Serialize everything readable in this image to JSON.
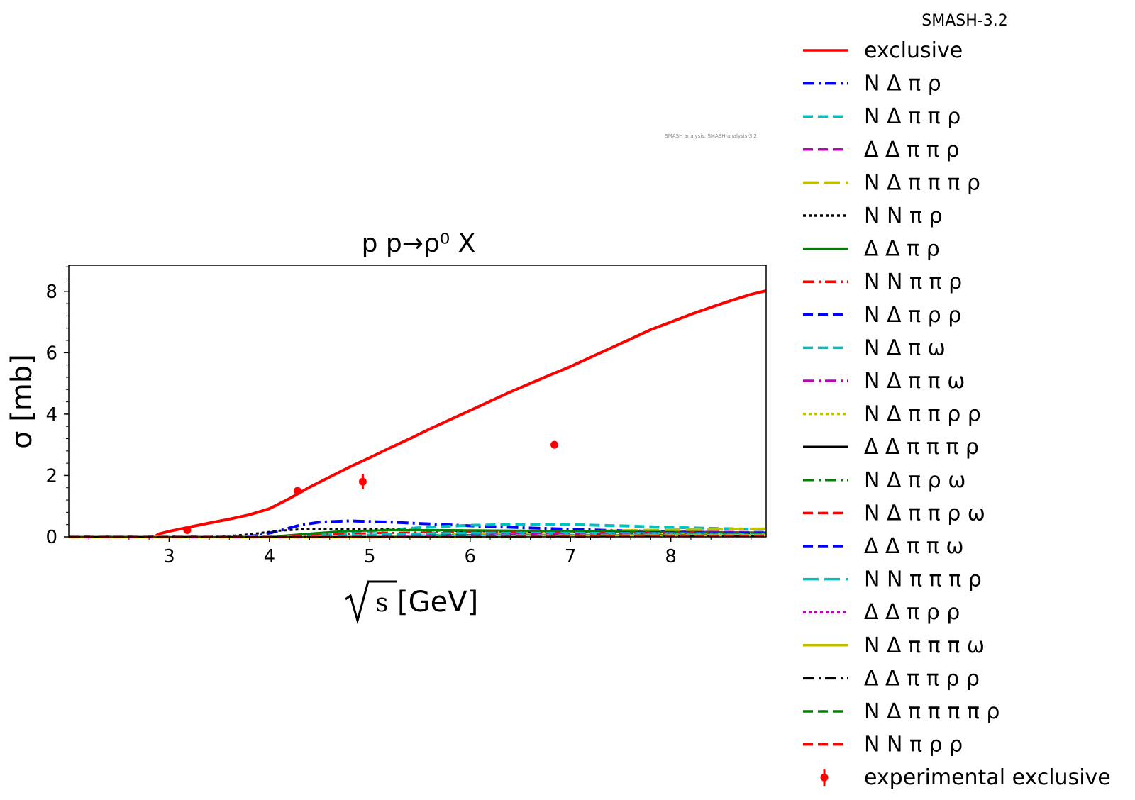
{
  "chart_data": {
    "type": "line",
    "title": "p p→ρ⁰ X",
    "xlabel_radicand": "s",
    "xlabel_unit": "[GeV]",
    "ylabel": "σ [mb]",
    "xlim": [
      2.0,
      8.95
    ],
    "ylim": [
      0,
      8.85
    ],
    "x_ticks": [
      3,
      4,
      5,
      6,
      7,
      8
    ],
    "y_ticks": [
      0,
      2,
      4,
      6,
      8
    ],
    "grid": false,
    "legend_title": "SMASH-3.2",
    "legend_placement": "outside-right",
    "watermark": "SMASH analysis: SMASH-analysis-3.2",
    "series": [
      {
        "name": "exclusive",
        "color": "#ff0000",
        "dash": "solid",
        "width": 4,
        "points": [
          [
            2.0,
            0
          ],
          [
            2.85,
            0
          ],
          [
            2.9,
            0.1
          ],
          [
            3.0,
            0.18
          ],
          [
            3.2,
            0.32
          ],
          [
            3.4,
            0.45
          ],
          [
            3.6,
            0.58
          ],
          [
            3.8,
            0.72
          ],
          [
            4.0,
            0.92
          ],
          [
            4.2,
            1.25
          ],
          [
            4.4,
            1.62
          ],
          [
            4.6,
            1.95
          ],
          [
            4.8,
            2.28
          ],
          [
            5.0,
            2.58
          ],
          [
            5.2,
            2.9
          ],
          [
            5.4,
            3.2
          ],
          [
            5.6,
            3.52
          ],
          [
            5.8,
            3.82
          ],
          [
            6.0,
            4.12
          ],
          [
            6.2,
            4.42
          ],
          [
            6.4,
            4.72
          ],
          [
            6.6,
            5.0
          ],
          [
            6.8,
            5.28
          ],
          [
            7.0,
            5.55
          ],
          [
            7.2,
            5.85
          ],
          [
            7.4,
            6.15
          ],
          [
            7.6,
            6.45
          ],
          [
            7.8,
            6.75
          ],
          [
            8.0,
            7.0
          ],
          [
            8.2,
            7.25
          ],
          [
            8.4,
            7.48
          ],
          [
            8.6,
            7.7
          ],
          [
            8.8,
            7.9
          ],
          [
            8.95,
            8.02
          ]
        ]
      },
      {
        "name": "N Δ π ρ",
        "color": "#0000ff",
        "dash": "dashdot",
        "width": 4,
        "points": [
          [
            2.0,
            0
          ],
          [
            3.7,
            0
          ],
          [
            3.9,
            0.05
          ],
          [
            4.1,
            0.2
          ],
          [
            4.3,
            0.38
          ],
          [
            4.5,
            0.48
          ],
          [
            4.8,
            0.52
          ],
          [
            5.2,
            0.48
          ],
          [
            5.6,
            0.42
          ],
          [
            6.0,
            0.36
          ],
          [
            6.5,
            0.3
          ],
          [
            7.0,
            0.25
          ],
          [
            7.5,
            0.2
          ],
          [
            8.0,
            0.17
          ],
          [
            8.5,
            0.14
          ],
          [
            8.95,
            0.12
          ]
        ]
      },
      {
        "name": "N Δ π π ρ",
        "color": "#00bfbf",
        "dash": "dashed",
        "width": 4,
        "points": [
          [
            2.0,
            0
          ],
          [
            4.2,
            0
          ],
          [
            4.5,
            0.05
          ],
          [
            5.0,
            0.18
          ],
          [
            5.5,
            0.3
          ],
          [
            6.0,
            0.38
          ],
          [
            6.5,
            0.41
          ],
          [
            7.0,
            0.4
          ],
          [
            7.5,
            0.36
          ],
          [
            8.0,
            0.31
          ],
          [
            8.5,
            0.27
          ],
          [
            8.95,
            0.24
          ]
        ]
      },
      {
        "name": "Δ Δ π π ρ",
        "color": "#bf00bf",
        "dash": "dashed",
        "width": 4,
        "points": [
          [
            2.0,
            0
          ],
          [
            4.5,
            0
          ],
          [
            5.0,
            0.05
          ],
          [
            5.5,
            0.1
          ],
          [
            6.0,
            0.14
          ],
          [
            6.5,
            0.16
          ],
          [
            7.0,
            0.17
          ],
          [
            7.5,
            0.17
          ],
          [
            8.0,
            0.16
          ],
          [
            8.5,
            0.15
          ],
          [
            8.95,
            0.14
          ]
        ]
      },
      {
        "name": "N Δ π π π ρ",
        "color": "#bfbf00",
        "dash": "longdash",
        "width": 4,
        "points": [
          [
            2.0,
            0
          ],
          [
            5.0,
            0
          ],
          [
            5.5,
            0.04
          ],
          [
            6.0,
            0.08
          ],
          [
            6.5,
            0.13
          ],
          [
            7.0,
            0.17
          ],
          [
            7.5,
            0.2
          ],
          [
            8.0,
            0.23
          ],
          [
            8.5,
            0.25
          ],
          [
            8.95,
            0.26
          ]
        ]
      },
      {
        "name": "N N π ρ",
        "color": "#000000",
        "dash": "dotted",
        "width": 3,
        "points": [
          [
            2.0,
            0
          ],
          [
            3.5,
            0
          ],
          [
            3.8,
            0.08
          ],
          [
            4.1,
            0.2
          ],
          [
            4.4,
            0.26
          ],
          [
            4.8,
            0.26
          ],
          [
            5.2,
            0.24
          ],
          [
            5.8,
            0.2
          ],
          [
            6.5,
            0.17
          ],
          [
            7.5,
            0.14
          ],
          [
            8.95,
            0.11
          ]
        ]
      },
      {
        "name": "Δ Δ π ρ",
        "color": "#008000",
        "dash": "solid",
        "width": 3,
        "points": [
          [
            2.0,
            0
          ],
          [
            4.0,
            0
          ],
          [
            4.3,
            0.08
          ],
          [
            4.7,
            0.18
          ],
          [
            5.2,
            0.22
          ],
          [
            5.8,
            0.22
          ],
          [
            6.5,
            0.2
          ],
          [
            7.5,
            0.17
          ],
          [
            8.95,
            0.14
          ]
        ]
      },
      {
        "name": "N N π π ρ",
        "color": "#ff0000",
        "dash": "dashdot",
        "width": 3,
        "points": [
          [
            2.0,
            0
          ],
          [
            4.0,
            0
          ],
          [
            4.4,
            0.05
          ],
          [
            5.0,
            0.12
          ],
          [
            5.6,
            0.15
          ],
          [
            6.2,
            0.16
          ],
          [
            7.0,
            0.15
          ],
          [
            8.0,
            0.13
          ],
          [
            8.95,
            0.11
          ]
        ]
      },
      {
        "name": "N Δ π ρ ρ",
        "color": "#0000ff",
        "dash": "dashed",
        "width": 3,
        "points": [
          [
            2.0,
            0
          ],
          [
            4.8,
            0
          ],
          [
            5.3,
            0.03
          ],
          [
            6.0,
            0.08
          ],
          [
            6.8,
            0.12
          ],
          [
            7.5,
            0.14
          ],
          [
            8.2,
            0.14
          ],
          [
            8.95,
            0.13
          ]
        ]
      },
      {
        "name": "N Δ π ω",
        "color": "#00bfbf",
        "dash": "dashed",
        "width": 3,
        "points": [
          [
            2.0,
            0
          ],
          [
            4.3,
            0
          ],
          [
            4.7,
            0.04
          ],
          [
            5.3,
            0.1
          ],
          [
            6.0,
            0.13
          ],
          [
            7.0,
            0.13
          ],
          [
            8.0,
            0.12
          ],
          [
            8.95,
            0.1
          ]
        ]
      },
      {
        "name": "N Δ π π ω",
        "color": "#bf00bf",
        "dash": "dashdot",
        "width": 3,
        "points": [
          [
            2.0,
            0
          ],
          [
            4.8,
            0
          ],
          [
            5.4,
            0.03
          ],
          [
            6.2,
            0.07
          ],
          [
            7.0,
            0.1
          ],
          [
            8.0,
            0.11
          ],
          [
            8.95,
            0.11
          ]
        ]
      },
      {
        "name": "N Δ π π ρ ρ",
        "color": "#bfbf00",
        "dash": "dotted",
        "width": 3,
        "points": [
          [
            2.0,
            0
          ],
          [
            5.5,
            0
          ],
          [
            6.2,
            0.02
          ],
          [
            7.0,
            0.05
          ],
          [
            8.0,
            0.08
          ],
          [
            8.95,
            0.1
          ]
        ]
      },
      {
        "name": "Δ Δ π π π ρ",
        "color": "#000000",
        "dash": "solid",
        "width": 2,
        "points": [
          [
            2.0,
            0
          ],
          [
            5.5,
            0
          ],
          [
            6.2,
            0.02
          ],
          [
            7.0,
            0.05
          ],
          [
            8.0,
            0.07
          ],
          [
            8.95,
            0.08
          ]
        ]
      },
      {
        "name": "N Δ π ρ ω",
        "color": "#008000",
        "dash": "dashdot",
        "width": 3,
        "points": [
          [
            2.0,
            0
          ],
          [
            5.2,
            0
          ],
          [
            5.8,
            0.02
          ],
          [
            6.6,
            0.05
          ],
          [
            7.5,
            0.07
          ],
          [
            8.95,
            0.08
          ]
        ]
      },
      {
        "name": "N Δ π π ρ ω",
        "color": "#ff0000",
        "dash": "dashed",
        "width": 3,
        "points": [
          [
            2.0,
            0
          ],
          [
            5.8,
            0
          ],
          [
            6.5,
            0.02
          ],
          [
            7.4,
            0.04
          ],
          [
            8.95,
            0.06
          ]
        ]
      },
      {
        "name": "Δ Δ π π ω",
        "color": "#0000ff",
        "dash": "dashed",
        "width": 3,
        "points": [
          [
            2.0,
            0
          ],
          [
            5.3,
            0
          ],
          [
            6.0,
            0.02
          ],
          [
            7.0,
            0.04
          ],
          [
            8.95,
            0.05
          ]
        ]
      },
      {
        "name": "N N π π π ρ",
        "color": "#00bfbf",
        "dash": "longdash",
        "width": 3,
        "points": [
          [
            2.0,
            0
          ],
          [
            4.8,
            0
          ],
          [
            5.5,
            0.03
          ],
          [
            6.5,
            0.06
          ],
          [
            7.5,
            0.07
          ],
          [
            8.95,
            0.07
          ]
        ]
      },
      {
        "name": "Δ Δ π ρ ρ",
        "color": "#bf00bf",
        "dash": "dotted",
        "width": 3,
        "points": [
          [
            2.0,
            0
          ],
          [
            5.3,
            0
          ],
          [
            6.0,
            0.02
          ],
          [
            7.0,
            0.04
          ],
          [
            8.95,
            0.05
          ]
        ]
      },
      {
        "name": "N Δ π π π ω",
        "color": "#bfbf00",
        "dash": "solid",
        "width": 3,
        "points": [
          [
            2.0,
            0
          ],
          [
            5.8,
            0
          ],
          [
            6.6,
            0.02
          ],
          [
            7.6,
            0.04
          ],
          [
            8.95,
            0.06
          ]
        ]
      },
      {
        "name": "Δ Δ π π ρ ρ",
        "color": "#000000",
        "dash": "dashdot",
        "width": 2,
        "points": [
          [
            2.0,
            0
          ],
          [
            6.0,
            0
          ],
          [
            7.0,
            0.01
          ],
          [
            8.0,
            0.02
          ],
          [
            8.95,
            0.03
          ]
        ]
      },
      {
        "name": "N Δ π π π π ρ",
        "color": "#008000",
        "dash": "dashed",
        "width": 3,
        "points": [
          [
            2.0,
            0
          ],
          [
            6.2,
            0
          ],
          [
            7.0,
            0.01
          ],
          [
            8.0,
            0.03
          ],
          [
            8.95,
            0.04
          ]
        ]
      },
      {
        "name": "N N π ρ ρ",
        "color": "#ff0000",
        "dash": "dashed",
        "width": 3,
        "points": [
          [
            2.0,
            0
          ],
          [
            5.0,
            0
          ],
          [
            5.8,
            0.01
          ],
          [
            7.0,
            0.02
          ],
          [
            8.95,
            0.03
          ]
        ]
      }
    ],
    "experimental": {
      "name": "experimental exclusive",
      "color": "#ff0000",
      "points": [
        {
          "x": 3.18,
          "y": 0.22,
          "err": 0.05
        },
        {
          "x": 4.28,
          "y": 1.5,
          "err": 0.08
        },
        {
          "x": 4.93,
          "y": 1.8,
          "err": 0.25
        },
        {
          "x": 6.84,
          "y": 3.0,
          "err": 0.05
        }
      ]
    }
  }
}
